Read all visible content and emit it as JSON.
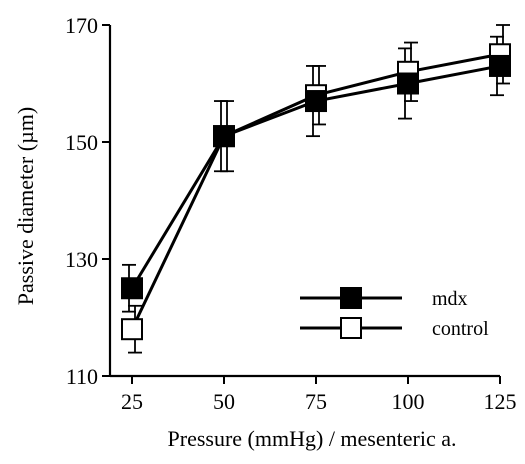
{
  "chart_data": {
    "type": "line",
    "x": [
      25,
      50,
      75,
      100,
      125
    ],
    "series": [
      {
        "name": "mdx",
        "marker": "filled-square",
        "values": [
          125,
          151,
          157,
          160,
          163
        ],
        "error": [
          4,
          6,
          6,
          6,
          5
        ]
      },
      {
        "name": "control",
        "marker": "open-square",
        "values": [
          118,
          151,
          158,
          162,
          165
        ],
        "error": [
          4,
          6,
          5,
          5,
          5
        ]
      }
    ],
    "xlabel": "Pressure (mmHg) / mesenteric a.",
    "ylabel": "Passive diameter (µm)",
    "xlim": [
      25,
      125
    ],
    "ylim": [
      110,
      170
    ],
    "yticks": [
      110,
      130,
      150,
      170
    ],
    "xticks": [
      25,
      50,
      75,
      100,
      125
    ],
    "legend_position": "lower-right",
    "grid": false,
    "colors": {
      "line": "#000000",
      "background": "#ffffff"
    }
  }
}
